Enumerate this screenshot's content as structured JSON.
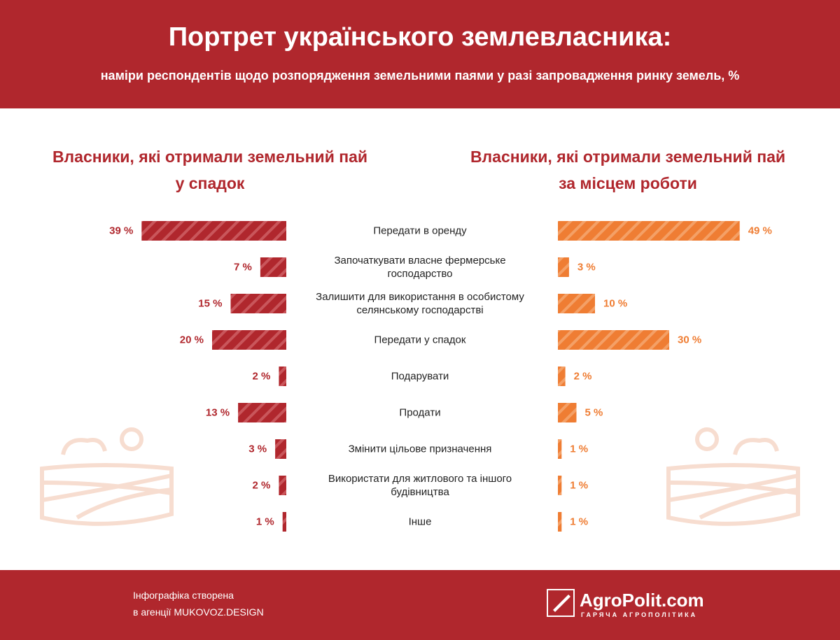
{
  "chart_data": {
    "type": "bar",
    "title": "Портрет українського землевласника:",
    "subtitle": "наміри респондентів щодо розпорядження земельними паями у разі запровадження ринку земель, %",
    "categories": [
      "Передати в оренду",
      "Започаткувати власне фермерське господарство",
      "Залишити для використання в особистому селянському господарстві",
      "Передати у спадок",
      "Подарувати",
      "Продати",
      "Змінити цільове призначення",
      "Використати для житлового та іншого будівництва",
      "Інше"
    ],
    "series": [
      {
        "name": "Власники, які отримали земельний пай у спадок",
        "color": "#b0272d",
        "side": "left",
        "values": [
          39,
          7,
          15,
          20,
          2,
          13,
          3,
          2,
          1
        ],
        "value_labels": [
          "39 %",
          "7 %",
          "15 %",
          "20 %",
          "2 %",
          "13 %",
          "3 %",
          "2 %",
          "1 %"
        ]
      },
      {
        "name": "Власники, які отримали земельний пай за місцем роботи",
        "color": "#ef7d33",
        "side": "right",
        "values": [
          49,
          3,
          10,
          30,
          2,
          5,
          1,
          1,
          1
        ],
        "value_labels": [
          "49 %",
          "3 %",
          "10 %",
          "30 %",
          "2 %",
          "5 %",
          "1 %",
          "1 %",
          "1 %"
        ]
      }
    ]
  },
  "footer": {
    "credit": [
      "Інфографіка створена",
      "в агенції MUKOVOZ.DESIGN"
    ],
    "logo": "AgroPolit.com",
    "tagline": "ГАРЯЧА АГРОПОЛІТИКА"
  }
}
